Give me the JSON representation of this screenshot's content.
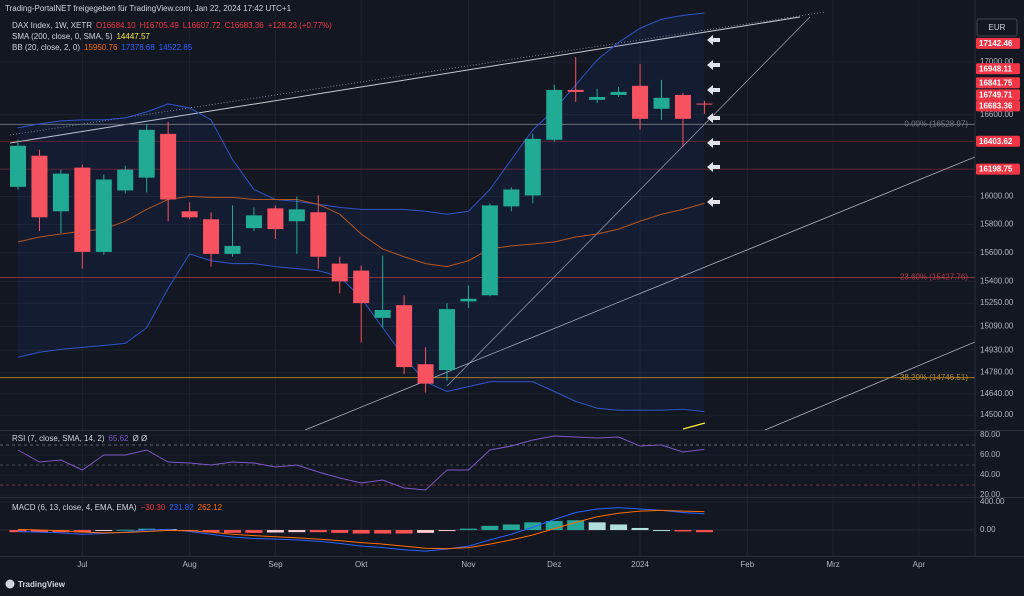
{
  "header": "Trading-PortalNET freigegeben für TradingView.com, Jan 22, 2024 17:42 UTC+1",
  "currency": "EUR",
  "brand": "TradingView",
  "chart_data": [
    {
      "type": "candlestick",
      "legend": [
        [
          {
            "text": "DAX Index, 1W, XETR",
            "color": "#d1d4dc"
          },
          {
            "text": "O16684.10",
            "color": "#f23645"
          },
          {
            "text": "H16705.49",
            "color": "#f23645"
          },
          {
            "text": "L16607.72",
            "color": "#f23645"
          },
          {
            "text": "C16683.36",
            "color": "#f23645"
          },
          {
            "text": "+128.23 (+0.77%)",
            "color": "#f23645"
          }
        ],
        [
          {
            "text": "SMA (200, close, 0, SMA, 5)",
            "color": "#d1d4dc"
          },
          {
            "text": "14447.57",
            "color": "#ffeb3b"
          }
        ],
        [
          {
            "text": "BB (20, close, 2, 0)",
            "color": "#d1d4dc"
          },
          {
            "text": "15950.76",
            "color": "#ff6d00"
          },
          {
            "text": "17378.68",
            "color": "#2962ff"
          },
          {
            "text": "14522.85",
            "color": "#2962ff"
          }
        ]
      ],
      "categories": [
        null,
        null,
        null,
        "Jul",
        null,
        null,
        null,
        null,
        "Aug",
        null,
        null,
        null,
        "Sep",
        null,
        null,
        null,
        "Okt",
        null,
        null,
        null,
        null,
        "Nov",
        null,
        null,
        null,
        "Dez",
        null,
        null,
        null,
        "2024",
        null,
        null,
        null,
        null,
        "Feb",
        null,
        null,
        null,
        "Mrz",
        null,
        null,
        null,
        "Apr"
      ],
      "open": [
        16070,
        16297,
        15894,
        16210,
        15606,
        16044,
        16137,
        16458,
        15894,
        15837,
        15592,
        15774,
        15915,
        15823,
        15887,
        15524,
        15475,
        15149,
        15236,
        14836,
        14797,
        15262,
        15304,
        15929,
        16008,
        16414,
        16787,
        16712,
        16749,
        16818,
        16645,
        16749,
        16684.1,
        null,
        null,
        null,
        null,
        null,
        null,
        null,
        null,
        null,
        null
      ],
      "high": [
        16415,
        16341,
        16195,
        16232,
        16159,
        16224,
        16532,
        16547,
        15958,
        15887,
        15936,
        15922,
        15936,
        16000,
        16008,
        15572,
        15510,
        15579,
        15304,
        14949,
        15250,
        15372,
        15951,
        16066,
        16458,
        16825,
        17038,
        16795,
        16810,
        16985,
        16863,
        16765,
        16705.49,
        null,
        null,
        null,
        null,
        null,
        null,
        null,
        null,
        null,
        null
      ],
      "low": [
        16050,
        15753,
        15739,
        15489,
        15586,
        16022,
        16030,
        15823,
        15837,
        15503,
        15572,
        15753,
        15697,
        15592,
        15489,
        15318,
        14982,
        15082,
        14771,
        14648,
        14726,
        15216,
        15297,
        15894,
        15951,
        16400,
        16697,
        16689,
        16734,
        16488,
        16562,
        16363,
        16607.72,
        null,
        null,
        null,
        null,
        null,
        null,
        null,
        null,
        null,
        null
      ],
      "close": [
        16370,
        15851,
        16166,
        15606,
        16123,
        16195,
        16488,
        15979,
        15851,
        15592,
        15648,
        15865,
        15767,
        15908,
        15572,
        15400,
        15250,
        15203,
        14817,
        14707,
        15209,
        15280,
        15936,
        16051,
        16421,
        16787,
        16772,
        16734,
        16772,
        16570,
        16727,
        16570,
        16683.36,
        null,
        null,
        null,
        null,
        null,
        null,
        null,
        null,
        null,
        null
      ],
      "up_color": "#22ab94",
      "down_color": "#f7525f",
      "overlays": [
        {
          "color": "#2f55c8",
          "values": [
            16503,
            16532,
            16555,
            16562,
            16562,
            16577,
            16622,
            16682,
            16652,
            16562,
            16268,
            16051,
            15979,
            15965,
            15944,
            15922,
            15908,
            15908,
            15908,
            15894,
            15873,
            15894,
            16051,
            16268,
            16488,
            16637,
            16825,
            17015,
            17150,
            17260,
            17330,
            17360,
            17378.68,
            null,
            null,
            null,
            null,
            null,
            null,
            null,
            null,
            null,
            null
          ]
        },
        {
          "color": "#b5561f",
          "values": [
            15676,
            15711,
            15732,
            15753,
            15767,
            15823,
            15908,
            15979,
            16001,
            15994,
            15994,
            15979,
            15979,
            15979,
            15944,
            15873,
            15732,
            15627,
            15572,
            15524,
            15503,
            15544,
            15627,
            15648,
            15662,
            15676,
            15711,
            15732,
            15767,
            15823,
            15873,
            15908,
            15950.76,
            null,
            null,
            null,
            null,
            null,
            null,
            null,
            null,
            null,
            null
          ]
        },
        {
          "color": "#2f55c8",
          "values": [
            14883,
            14916,
            14936,
            14949,
            14962,
            14976,
            15082,
            15352,
            15592,
            15544,
            15524,
            15524,
            15503,
            15489,
            15475,
            15434,
            15284,
            15082,
            14883,
            14719,
            14655,
            14687,
            14719,
            14719,
            14719,
            14655,
            14590,
            14545,
            14532,
            14532,
            14532,
            14538,
            14522.85,
            null,
            null,
            null,
            null,
            null,
            null,
            null,
            null,
            null,
            null
          ]
        }
      ],
      "band_fill": "#2962ff",
      "fib_levels": [
        {
          "value": 16528.97,
          "label": "0.00% (16528.97)",
          "color": "#787b86"
        },
        {
          "value": 15427.76,
          "label": "23.60% (15427.76)",
          "color": "#b33a44"
        },
        {
          "value": 14746.51,
          "label": "38.20% (14746.51)",
          "color": "#b58a2a"
        }
      ],
      "price_labels": [
        {
          "value": 17142.46,
          "line": false
        },
        {
          "value": 16948.11,
          "line": false
        },
        {
          "value": 16841.75,
          "line": false
        },
        {
          "value": 16749.71,
          "line": false
        },
        {
          "value": 16683.36,
          "line": false
        },
        {
          "value": 16403.62,
          "line": true
        },
        {
          "value": 16198.75,
          "line": true
        }
      ],
      "price_label_color": "#f23645",
      "log_scale": true,
      "ylim": [
        14403,
        17418
      ],
      "yticks": [
        {
          "value": 14500,
          "label": "14500.00"
        },
        {
          "value": 14640,
          "label": "14640.00"
        },
        {
          "value": 14780,
          "label": "14780.00"
        },
        {
          "value": 14930,
          "label": "14930.00"
        },
        {
          "value": 15090,
          "label": "15090.00"
        },
        {
          "value": 15250,
          "label": "15250.00"
        },
        {
          "value": 15400,
          "label": "15400.00"
        },
        {
          "value": 15600,
          "label": "15600.00"
        },
        {
          "value": 15800,
          "label": "15800.00"
        },
        {
          "value": 16000,
          "label": "16000.00"
        },
        {
          "value": 16600,
          "label": "16600.00"
        },
        {
          "value": 17000,
          "label": "17000.00"
        }
      ],
      "grid": true
    },
    {
      "type": "line",
      "legend": [
        [
          {
            "text": "RSI (7, close, SMA, 14, 2)",
            "color": "#d1d4dc"
          },
          {
            "text": "65.62",
            "color": "#7e57c2"
          },
          {
            "text": "Ø Ø",
            "color": "#d1d4dc"
          }
        ]
      ],
      "color": "#7e57c2",
      "values": [
        65,
        53,
        55,
        45,
        60,
        60,
        65,
        53,
        52,
        50,
        53,
        52,
        48,
        50,
        43,
        37,
        32,
        35,
        27,
        25,
        45,
        45,
        65,
        69,
        75,
        79,
        78,
        77,
        78,
        69,
        70,
        63,
        65.62,
        null,
        null,
        null,
        null,
        null,
        null,
        null,
        null,
        null,
        null
      ],
      "levels": [
        {
          "value": 70,
          "color": "#787b86"
        },
        {
          "value": 50,
          "color": "#555966"
        },
        {
          "value": 30,
          "color": "#9b3a44"
        }
      ],
      "ylim": [
        17,
        84
      ],
      "yticks": [
        {
          "value": 20,
          "label": "20.00"
        },
        {
          "value": 40,
          "label": "40.00"
        },
        {
          "value": 60,
          "label": "60.00"
        },
        {
          "value": 80,
          "label": "80.00"
        }
      ]
    },
    {
      "type": "macd",
      "legend": [
        [
          {
            "text": "MACD (6, 13, close, 4, EMA, EMA)",
            "color": "#d1d4dc"
          },
          {
            "text": "−30.30",
            "color": "#f23645"
          },
          {
            "text": "231.82",
            "color": "#2962ff"
          },
          {
            "text": "262.12",
            "color": "#ff6d00"
          }
        ]
      ],
      "histogram": [
        -30,
        -30,
        -30,
        -30,
        -10,
        5,
        20,
        15,
        -10,
        -30,
        -40,
        -40,
        -35,
        -30,
        -30,
        -40,
        -50,
        -50,
        -50,
        -40,
        -5,
        20,
        60,
        80,
        110,
        130,
        140,
        110,
        80,
        30,
        0,
        -20,
        -30.3,
        null,
        null,
        null,
        null,
        null,
        null,
        null,
        null,
        null,
        null
      ],
      "histogram_colors": {
        "grow_above": "#26a69a",
        "fall_above": "#b2dfdb",
        "grow_below": "#ffcdd2",
        "fall_below": "#ff5252"
      },
      "series": [
        {
          "color": "#2962ff",
          "values": [
            -20,
            -30,
            -40,
            -60,
            -50,
            -30,
            0,
            10,
            -20,
            -60,
            -100,
            -120,
            -130,
            -140,
            -160,
            -190,
            -230,
            -250,
            -280,
            -300,
            -270,
            -230,
            -140,
            -60,
            40,
            150,
            250,
            300,
            320,
            300,
            280,
            250,
            231.82,
            null,
            null,
            null,
            null,
            null,
            null,
            null,
            null,
            null,
            null
          ]
        },
        {
          "color": "#ff6d00",
          "values": [
            10,
            0,
            -10,
            -30,
            -40,
            -35,
            -20,
            -5,
            -10,
            -30,
            -60,
            -80,
            -95,
            -110,
            -130,
            -150,
            -180,
            -200,
            -230,
            -260,
            -265,
            -250,
            -200,
            -140,
            -70,
            20,
            110,
            190,
            240,
            270,
            280,
            270,
            262.12,
            null,
            null,
            null,
            null,
            null,
            null,
            null,
            null,
            null,
            null
          ]
        }
      ],
      "ylim": [
        -370,
        457
      ],
      "yticks": [
        {
          "value": 0,
          "label": "0.00"
        },
        {
          "value": 400,
          "label": "400.00"
        }
      ]
    }
  ]
}
